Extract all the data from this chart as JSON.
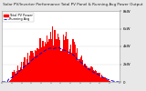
{
  "title": " Solar PV/Inverter Performance Total PV Panel & Running Avg Power Output",
  "background_color": "#e8e8e8",
  "plot_bg": "#ffffff",
  "grid_color": "#ffffff",
  "bar_color": "#ff0000",
  "line_color": "#0000cc",
  "n_bars": 110,
  "ylim_max": 1.0,
  "ytick_labels": [
    "8kW",
    "6kW",
    "4kW",
    "2kW",
    "0"
  ],
  "title_fontsize": 3.0,
  "axis_fontsize": 2.8,
  "legend_fontsize": 2.5,
  "legend_label_bar": "Total PV Power",
  "legend_label_line": "Running Avg"
}
